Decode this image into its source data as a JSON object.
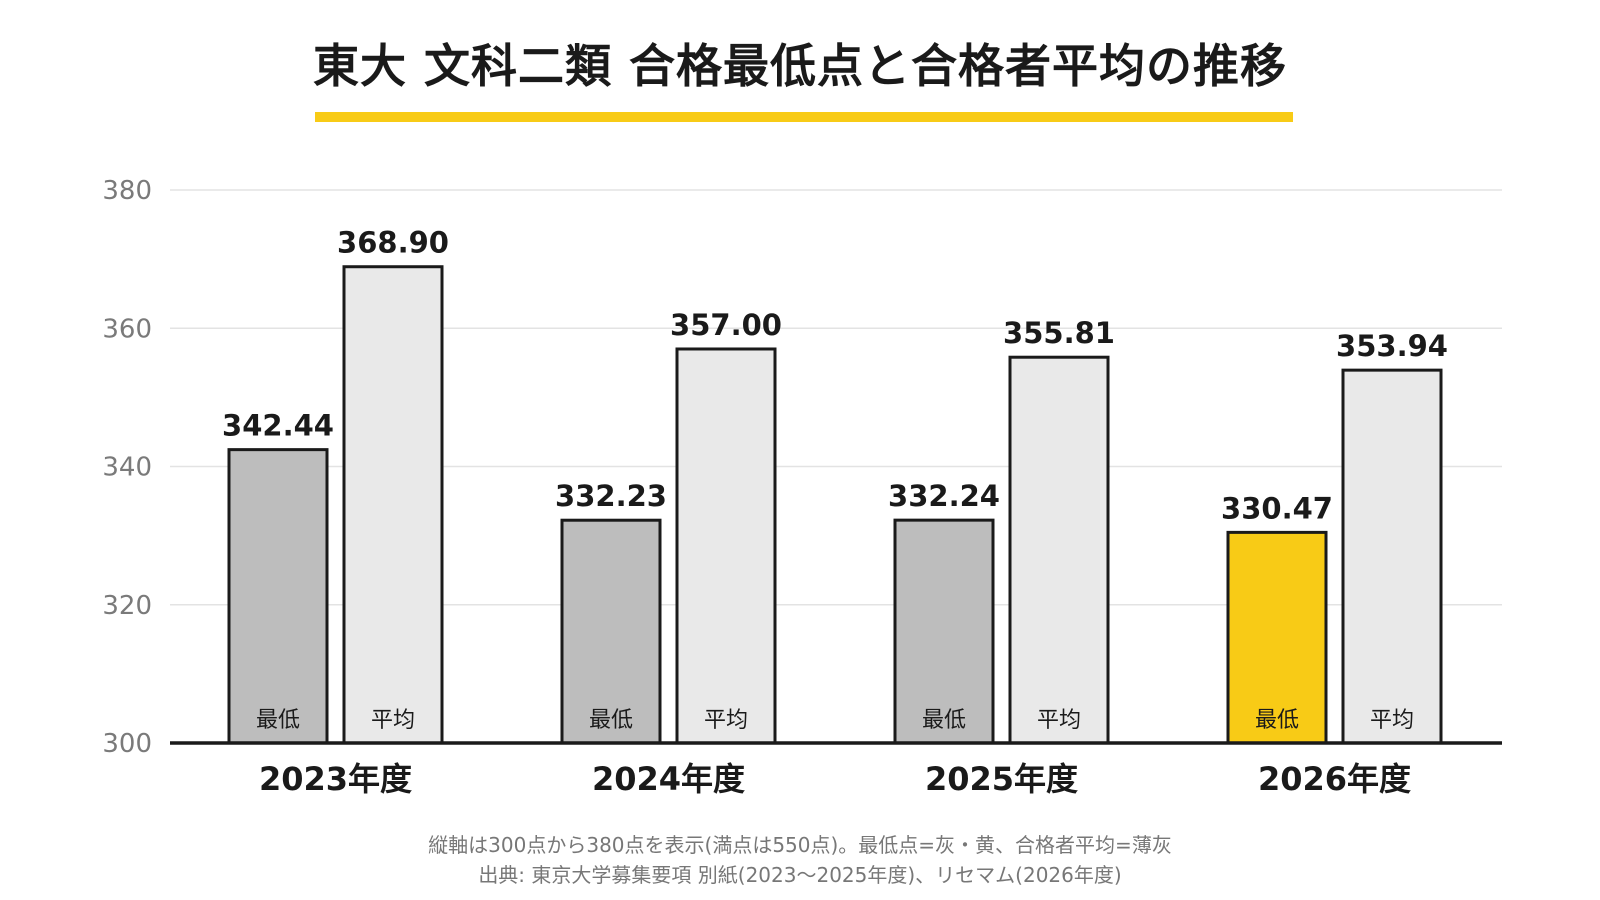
{
  "chart_data": {
    "type": "bar",
    "title": "東大 文科二類 合格最低点と合格者平均の推移",
    "categories": [
      "2023年度",
      "2024年度",
      "2025年度",
      "2026年度"
    ],
    "series": [
      {
        "name": "最低",
        "values": [
          342.44,
          332.23,
          332.24,
          330.47
        ]
      },
      {
        "name": "平均",
        "values": [
          368.9,
          357.0,
          355.81,
          353.94
        ]
      }
    ],
    "value_labels": [
      [
        "342.44",
        "332.23",
        "332.24",
        "330.47"
      ],
      [
        "368.90",
        "357.00",
        "355.81",
        "353.94"
      ]
    ],
    "ylim": [
      300,
      380
    ],
    "yticks": [
      300,
      320,
      340,
      360,
      380
    ],
    "grid": true,
    "colors": {
      "minimum": "#bdbdbd",
      "minimum_highlight": "#f8cb16",
      "average": "#e9e9e9",
      "outline": "#1a1a1a",
      "gridline": "#e3e3e3",
      "tick_label": "#7a7a7a",
      "accent": "#f8cb16"
    },
    "highlight_index": 3
  },
  "notes": [
    "縦軸は300点から380点を表示(満点は550点)。最低点=灰・黄、合格者平均=薄灰",
    "出典: 東京大学募集要項 別紙(2023〜2025年度)、リセマム(2026年度)"
  ]
}
